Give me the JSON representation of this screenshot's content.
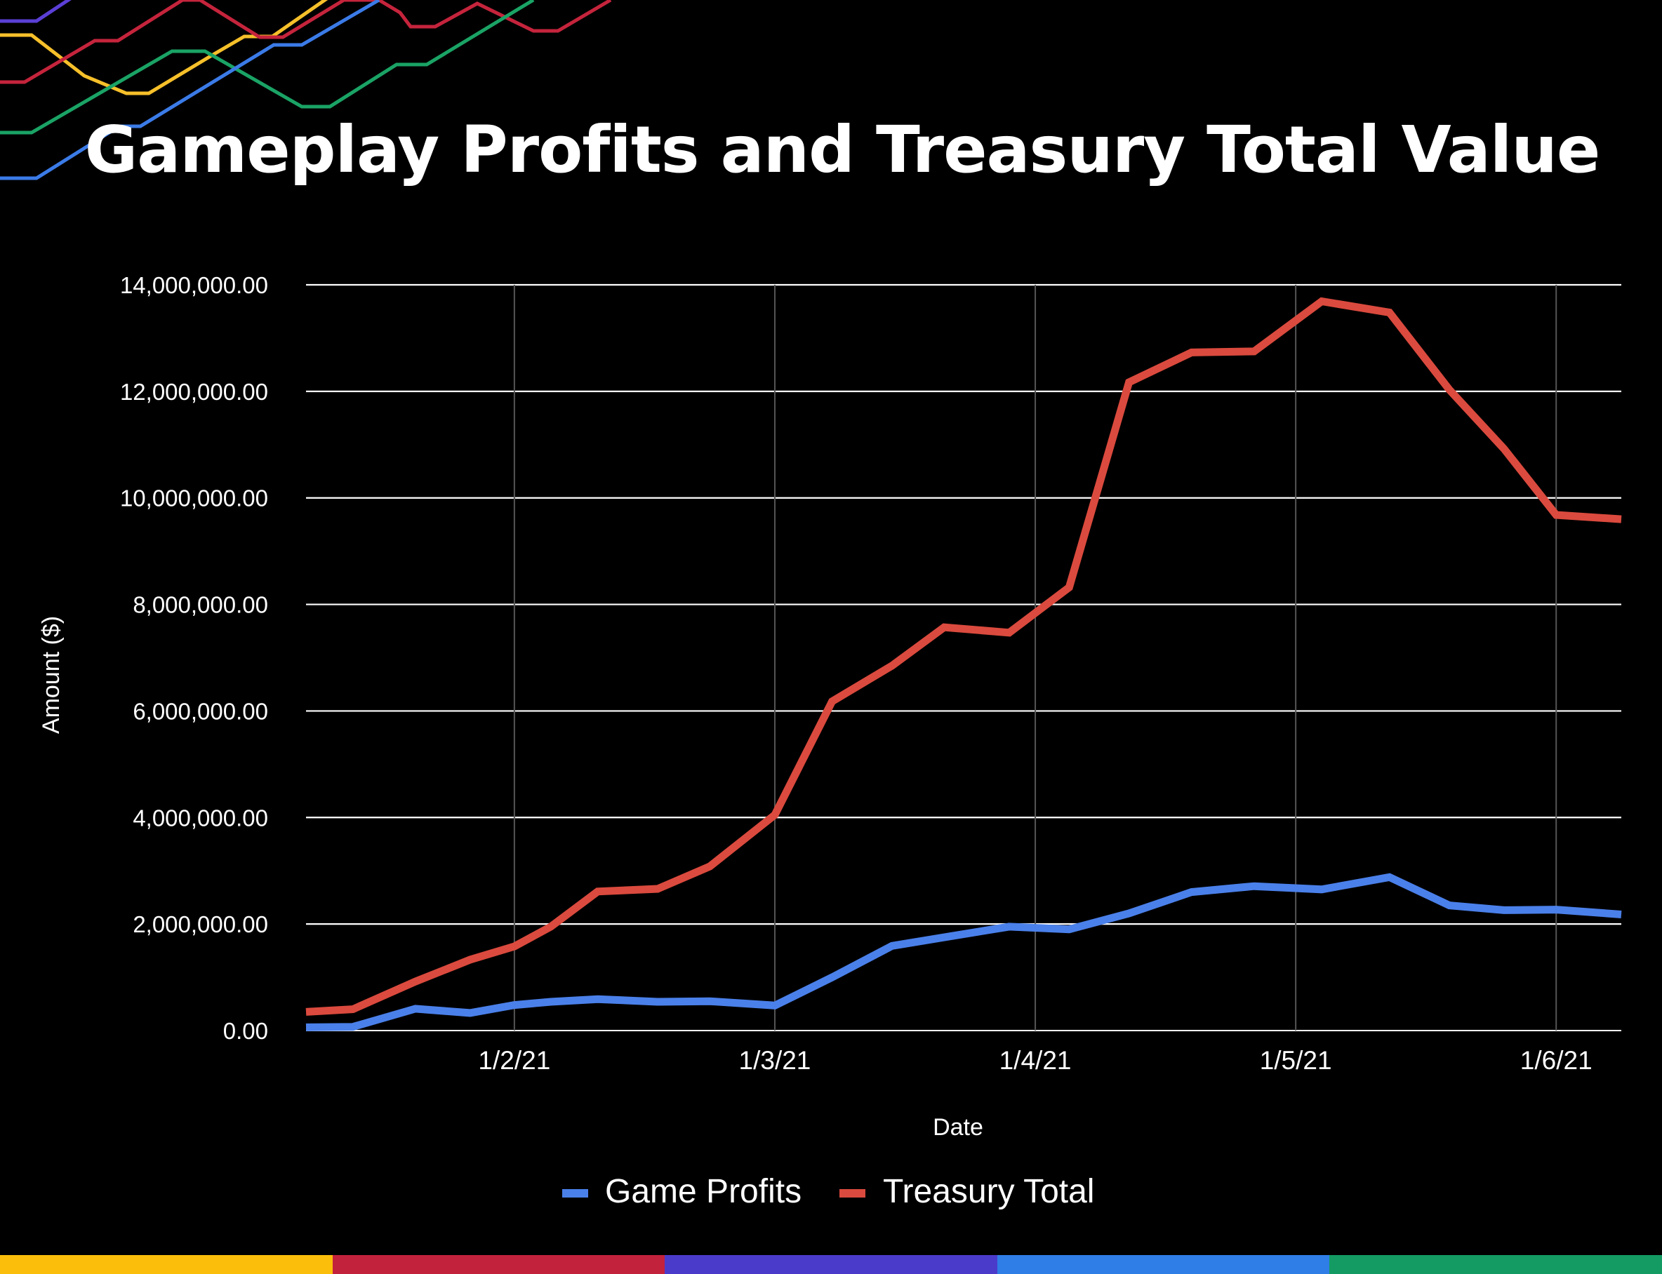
{
  "title": "Gameplay Profits and Treasury Total Value",
  "colors": {
    "background": "#000000",
    "game_profits": "#4a80ea",
    "treasury_total": "#db4a3e",
    "grid": "#ffffff",
    "decor": [
      "#5b3fd6",
      "#f6c02a",
      "#c5243c",
      "#1aa365",
      "#3b7be8"
    ],
    "bottom_bar": [
      "#fbbe0b",
      "#c3223d",
      "#4b3bcb",
      "#2f7de6",
      "#139b63"
    ]
  },
  "chart_data": {
    "type": "line",
    "title": "Gameplay Profits and Treasury Total Value",
    "xlabel": "Date",
    "ylabel": "Amount ($)",
    "x_ticks": [
      "1/2/21",
      "1/3/21",
      "1/4/21",
      "1/5/21",
      "1/6/21"
    ],
    "x_tick_values": [
      1.0,
      2.0,
      3.0,
      4.0,
      5.0
    ],
    "y_ticks": [
      "0.00",
      "2,000,000.00",
      "4,000,000.00",
      "6,000,000.00",
      "8,000,000.00",
      "10,000,000.00",
      "12,000,000.00",
      "14,000,000.00"
    ],
    "ylim": [
      0,
      14000000
    ],
    "xlim": [
      0.2,
      5.25
    ],
    "grid": true,
    "legend_position": "bottom",
    "x": [
      0.2,
      0.38,
      0.62,
      0.83,
      1.0,
      1.14,
      1.32,
      1.55,
      1.75,
      2.0,
      2.22,
      2.45,
      2.65,
      2.9,
      3.13,
      3.36,
      3.6,
      3.84,
      4.1,
      4.36,
      4.59,
      4.8,
      5.0,
      5.25
    ],
    "series": [
      {
        "name": "Game Profits",
        "color": "#4a80ea",
        "values": [
          60000,
          70000,
          410000,
          330000,
          480000,
          540000,
          590000,
          540000,
          550000,
          470000,
          1000000,
          1590000,
          1750000,
          1950000,
          1900000,
          2200000,
          2600000,
          2710000,
          2650000,
          2880000,
          2350000,
          2260000,
          2270000,
          2180000
        ]
      },
      {
        "name": "Treasury Total",
        "color": "#db4a3e",
        "values": [
          350000,
          400000,
          920000,
          1330000,
          1580000,
          1950000,
          2610000,
          2660000,
          3080000,
          4050000,
          6180000,
          6850000,
          7570000,
          7470000,
          8320000,
          12170000,
          12730000,
          12750000,
          13690000,
          13480000,
          12030000,
          10920000,
          9680000,
          9600000
        ]
      }
    ]
  },
  "legend": {
    "items": [
      {
        "label": "Game Profits",
        "color": "#4a80ea"
      },
      {
        "label": "Treasury Total",
        "color": "#db4a3e"
      }
    ]
  }
}
